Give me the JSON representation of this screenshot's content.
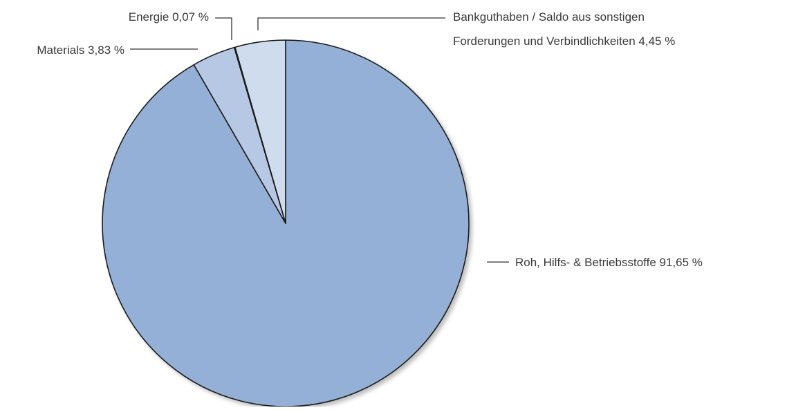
{
  "chart_data": {
    "type": "pie",
    "title": "",
    "start": "12 o'clock",
    "direction": "clockwise",
    "slices": [
      {
        "name": "Roh, Hilfs- & Betriebsstoffe",
        "value": 91.65,
        "label": "Roh, Hilfs- & Betriebsstoffe 91,65 %",
        "color": "#94b0d6"
      },
      {
        "name": "Materials",
        "value": 3.83,
        "label": "Materials 3,83 %",
        "color": "#b7c8e4"
      },
      {
        "name": "Energie",
        "value": 0.07,
        "label": "Energie 0,07 %",
        "color": "#94b0d6"
      },
      {
        "name": "Bankguthaben / Saldo aus sonstigen Forderungen und Verbindlichkeiten",
        "value": 4.45,
        "label_lines": [
          "Bankguthaben / Saldo aus sonstigen",
          "Forderungen und Verbindlichkeiten  4,45 %"
        ],
        "color": "#cfdcee"
      }
    ],
    "stroke_color": "#1a1a1a",
    "leader_color": "#333333"
  }
}
